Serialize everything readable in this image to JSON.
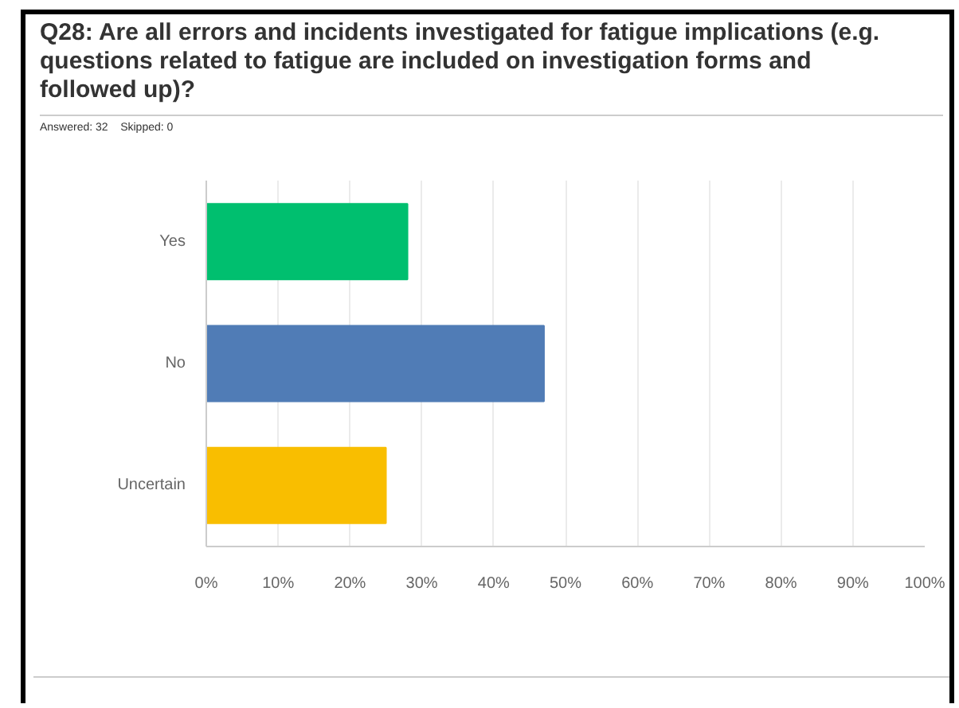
{
  "chart_data": {
    "type": "bar",
    "orientation": "horizontal",
    "title": "Q28: Are all errors and incidents investigated for fatigue implications (e.g. questions related to fatigue are included on investigation forms and followed up)?",
    "subtitle": "Answered: 32    Skipped: 0",
    "categories": [
      "Yes",
      "No",
      "Uncertain"
    ],
    "values": [
      28,
      47,
      25
    ],
    "colors": [
      "#00bf6f",
      "#507cb6",
      "#f9be00"
    ],
    "xlim": [
      0,
      100
    ],
    "xticks": [
      {
        "value": 0,
        "label": "0%"
      },
      {
        "value": 10,
        "label": "10%"
      },
      {
        "value": 20,
        "label": "20%"
      },
      {
        "value": 30,
        "label": "30%"
      },
      {
        "value": 40,
        "label": "40%"
      },
      {
        "value": 50,
        "label": "50%"
      },
      {
        "value": 60,
        "label": "60%"
      },
      {
        "value": 70,
        "label": "70%"
      },
      {
        "value": 80,
        "label": "80%"
      },
      {
        "value": 90,
        "label": "90%"
      },
      {
        "value": 100,
        "label": "100%"
      }
    ],
    "grid": "x"
  }
}
